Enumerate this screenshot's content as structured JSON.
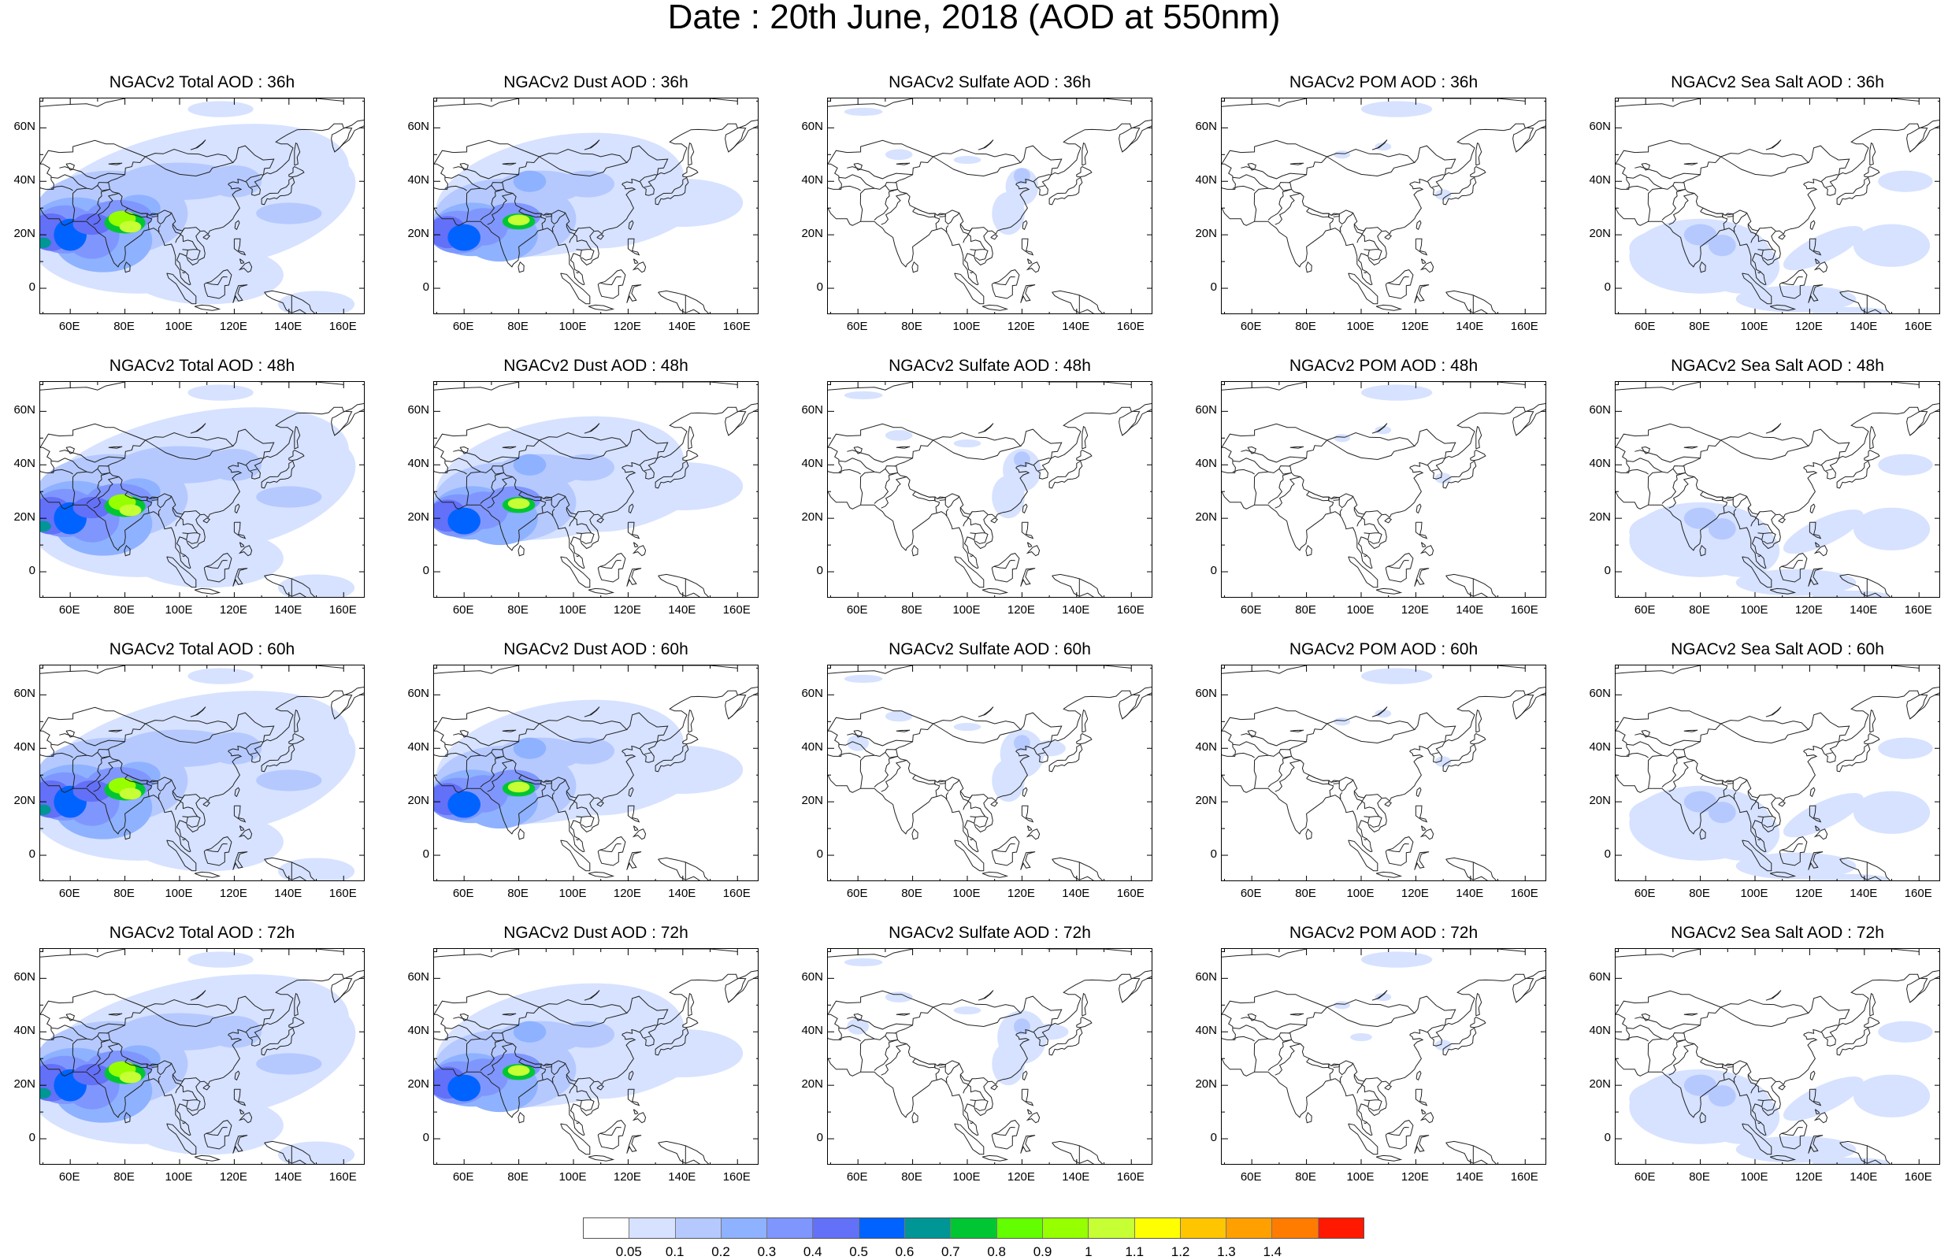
{
  "title": "Date : 20th June, 2018 (AOD at 550nm)",
  "lat_ticks": [
    "60N",
    "40N",
    "20N",
    "0"
  ],
  "lon_ticks": [
    "60E",
    "80E",
    "100E",
    "120E",
    "140E",
    "160E"
  ],
  "panels": [
    {
      "title": "NGACv2 Total AOD : 36h",
      "species": "total"
    },
    {
      "title": "NGACv2 Dust AOD : 36h",
      "species": "dust"
    },
    {
      "title": "NGACv2 Sulfate AOD : 36h",
      "species": "sulfate"
    },
    {
      "title": "NGACv2 POM AOD : 36h",
      "species": "pom"
    },
    {
      "title": "NGACv2 Sea Salt AOD : 36h",
      "species": "seasalt"
    },
    {
      "title": "NGACv2 Total AOD : 48h",
      "species": "total"
    },
    {
      "title": "NGACv2 Dust AOD : 48h",
      "species": "dust"
    },
    {
      "title": "NGACv2 Sulfate AOD : 48h",
      "species": "sulfate"
    },
    {
      "title": "NGACv2 POM AOD : 48h",
      "species": "pom"
    },
    {
      "title": "NGACv2 Sea Salt AOD : 48h",
      "species": "seasalt"
    },
    {
      "title": "NGACv2 Total AOD : 60h",
      "species": "total"
    },
    {
      "title": "NGACv2 Dust AOD : 60h",
      "species": "dust"
    },
    {
      "title": "NGACv2 Sulfate AOD : 60h",
      "species": "sulfate"
    },
    {
      "title": "NGACv2 POM AOD : 60h",
      "species": "pom"
    },
    {
      "title": "NGACv2 Sea Salt AOD : 60h",
      "species": "seasalt"
    },
    {
      "title": "NGACv2 Total AOD : 72h",
      "species": "total"
    },
    {
      "title": "NGACv2 Dust AOD : 72h",
      "species": "dust"
    },
    {
      "title": "NGACv2 Sulfate AOD : 72h",
      "species": "sulfate"
    },
    {
      "title": "NGACv2 POM AOD : 72h",
      "species": "pom"
    },
    {
      "title": "NGACv2 Sea Salt  AOD : 72h",
      "species": "seasalt"
    }
  ],
  "colorbar": {
    "labels": [
      "0.05",
      "0.1",
      "0.2",
      "0.3",
      "0.4",
      "0.5",
      "0.6",
      "0.7",
      "0.8",
      "0.9",
      "1",
      "1.1",
      "1.2",
      "1.3",
      "1.4"
    ],
    "colors": [
      "#ffffff",
      "#d6e2ff",
      "#b5c9ff",
      "#8eb2ff",
      "#7f96ff",
      "#6370f8",
      "#0063ff",
      "#009696",
      "#00c633",
      "#63ff00",
      "#96ff00",
      "#c6ff33",
      "#ffff00",
      "#ffc600",
      "#ffa000",
      "#ff7c00",
      "#ff1900"
    ]
  }
}
